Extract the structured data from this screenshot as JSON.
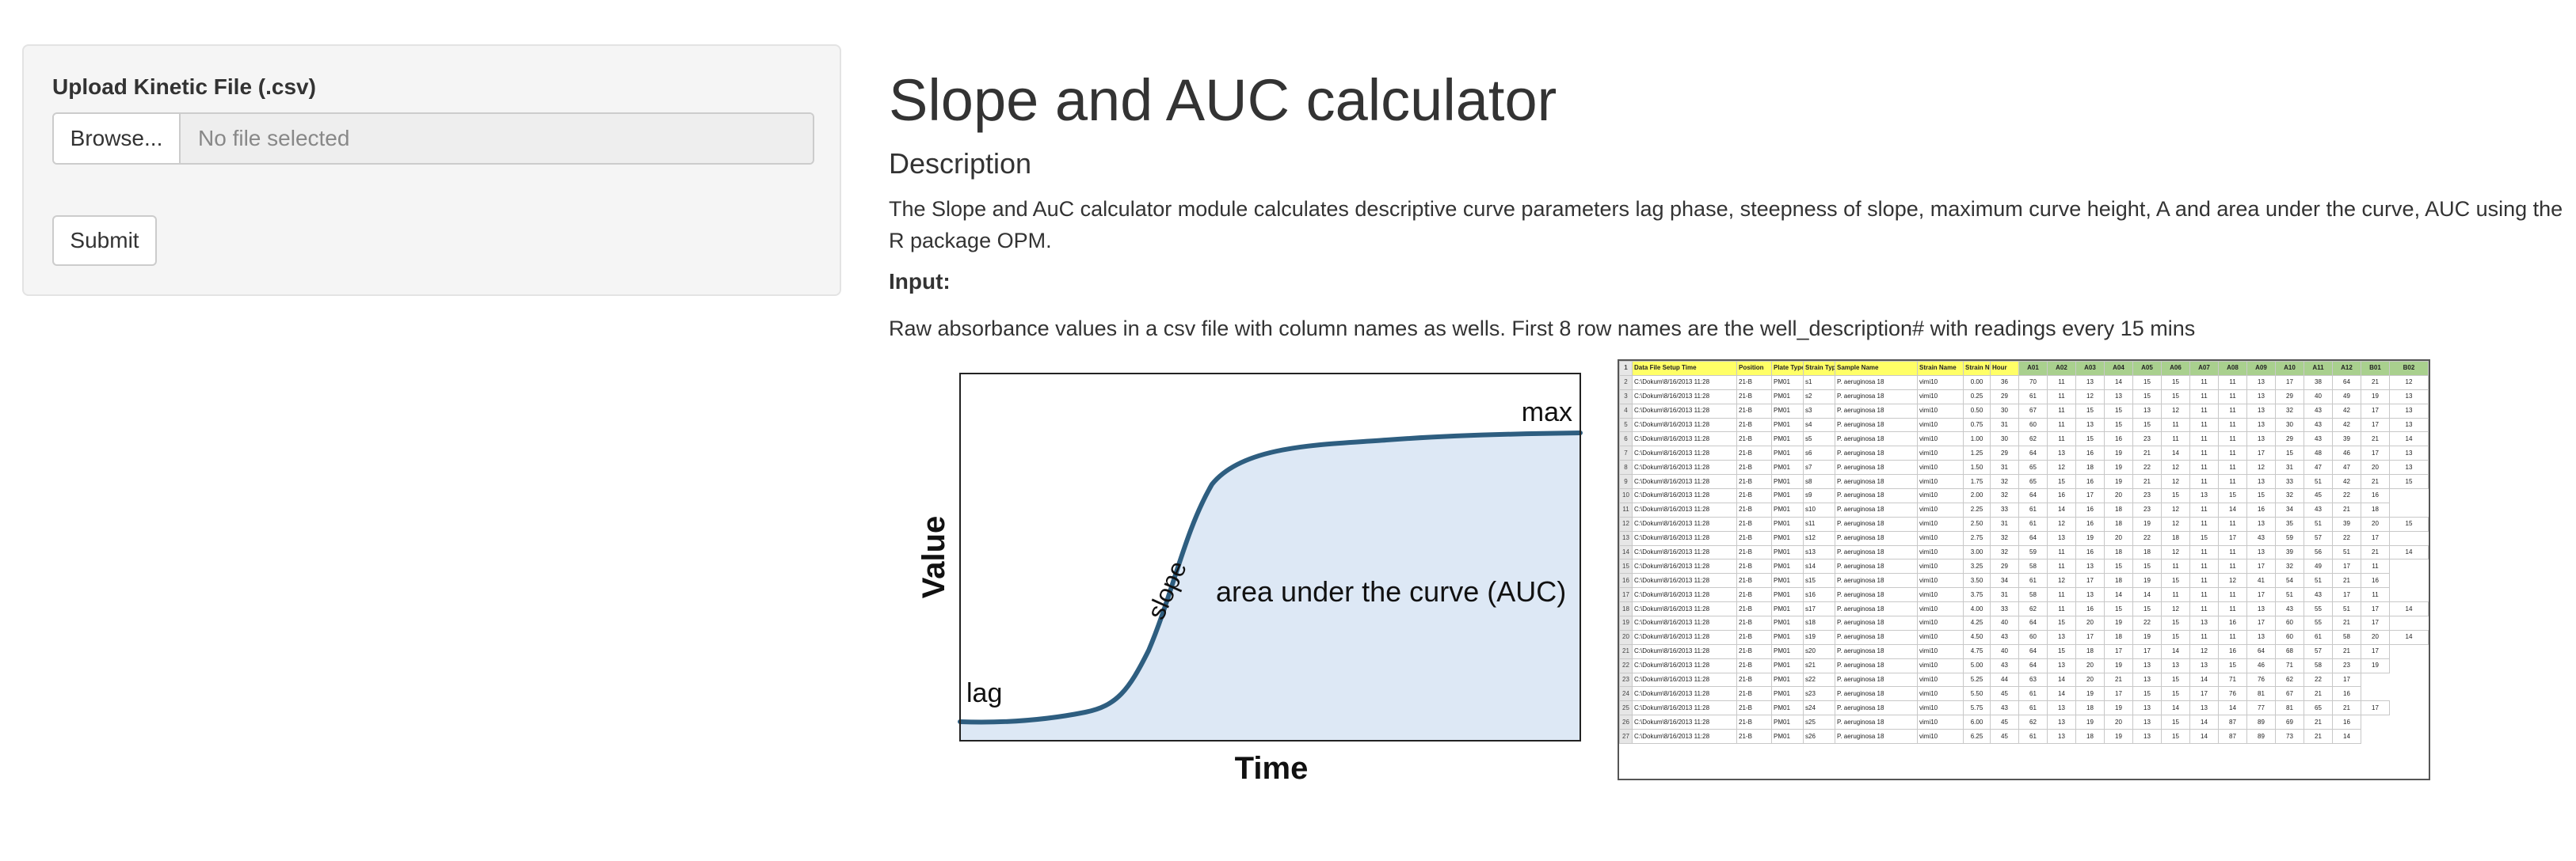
{
  "sidebar": {
    "upload_label": "Upload Kinetic File (.csv)",
    "browse_label": "Browse...",
    "file_placeholder": "No file selected",
    "submit_label": "Submit"
  },
  "main": {
    "title": "Slope and AUC calculator",
    "description_heading": "Description",
    "description_text": "The Slope and AuC calculator module calculates descriptive curve parameters lag phase, steepness of slope, maximum curve height, A and area under the curve, AUC using the R package OPM.",
    "input_heading": "Input:",
    "input_text": "Raw absorbance values in a csv file with column names as wells. First 8 row names are the well_description# with readings every 15 mins"
  },
  "curve_figure": {
    "xlabel": "Time",
    "ylabel": "Value",
    "lag_label": "lag",
    "slope_label": "slope",
    "max_label": "max",
    "auc_label": "area under the curve (AUC)",
    "curve_color": "#2e5e80",
    "fill_color": "#dde8f5"
  },
  "spreadsheet": {
    "header_colors": {
      "meta": "#ffff66",
      "wells": "#a9d08e"
    },
    "headers": [
      "Data File",
      "Setup Time",
      "Position",
      "Plate Type",
      "Strain Type",
      "Sample Name",
      "Strain Name",
      "Strain Number",
      "Hour",
      "A01",
      "A02",
      "A03",
      "A04",
      "A05",
      "A06",
      "A07",
      "A08",
      "A09",
      "A10",
      "A11",
      "A12",
      "B01",
      "B02"
    ],
    "rows": [
      [
        "C:\\Dokum\\8/16/2013 11:28",
        "21-B",
        "PM01",
        "s1",
        "P. aeruginosa 18",
        "vimi10",
        "0.00",
        "36",
        "70",
        "11",
        "13",
        "14",
        "15",
        "15",
        "11",
        "11",
        "13",
        "17",
        "38",
        "64",
        "21",
        "12"
      ],
      [
        "C:\\Dokum\\8/16/2013 11:28",
        "21-B",
        "PM01",
        "s2",
        "P. aeruginosa 18",
        "vimi10",
        "0.25",
        "29",
        "61",
        "11",
        "12",
        "13",
        "15",
        "15",
        "11",
        "11",
        "13",
        "29",
        "40",
        "49",
        "19",
        "13"
      ],
      [
        "C:\\Dokum\\8/16/2013 11:28",
        "21-B",
        "PM01",
        "s3",
        "P. aeruginosa 18",
        "vimi10",
        "0.50",
        "30",
        "67",
        "11",
        "15",
        "15",
        "13",
        "12",
        "11",
        "11",
        "13",
        "32",
        "43",
        "42",
        "17",
        "13"
      ],
      [
        "C:\\Dokum\\8/16/2013 11:28",
        "21-B",
        "PM01",
        "s4",
        "P. aeruginosa 18",
        "vimi10",
        "0.75",
        "31",
        "60",
        "11",
        "13",
        "15",
        "15",
        "11",
        "11",
        "11",
        "13",
        "30",
        "43",
        "42",
        "17",
        "13"
      ],
      [
        "C:\\Dokum\\8/16/2013 11:28",
        "21-B",
        "PM01",
        "s5",
        "P. aeruginosa 18",
        "vimi10",
        "1.00",
        "30",
        "62",
        "11",
        "15",
        "16",
        "23",
        "11",
        "11",
        "11",
        "13",
        "29",
        "43",
        "39",
        "21",
        "14"
      ],
      [
        "C:\\Dokum\\8/16/2013 11:28",
        "21-B",
        "PM01",
        "s6",
        "P. aeruginosa 18",
        "vimi10",
        "1.25",
        "29",
        "64",
        "13",
        "16",
        "19",
        "21",
        "14",
        "11",
        "11",
        "17",
        "15",
        "48",
        "46",
        "17",
        "13"
      ],
      [
        "C:\\Dokum\\8/16/2013 11:28",
        "21-B",
        "PM01",
        "s7",
        "P. aeruginosa 18",
        "vimi10",
        "1.50",
        "31",
        "65",
        "12",
        "18",
        "19",
        "22",
        "12",
        "11",
        "11",
        "12",
        "31",
        "47",
        "47",
        "20",
        "13"
      ],
      [
        "C:\\Dokum\\8/16/2013 11:28",
        "21-B",
        "PM01",
        "s8",
        "P. aeruginosa 18",
        "vimi10",
        "1.75",
        "32",
        "65",
        "15",
        "16",
        "19",
        "21",
        "12",
        "11",
        "11",
        "13",
        "33",
        "51",
        "42",
        "21",
        "15"
      ],
      [
        "C:\\Dokum\\8/16/2013 11:28",
        "21-B",
        "PM01",
        "s9",
        "P. aeruginosa 18",
        "vimi10",
        "2.00",
        "32",
        "64",
        "16",
        "17",
        "20",
        "23",
        "15",
        "13",
        "15",
        "15",
        "32",
        "45",
        "22",
        "16"
      ],
      [
        "C:\\Dokum\\8/16/2013 11:28",
        "21-B",
        "PM01",
        "s10",
        "P. aeruginosa 18",
        "vimi10",
        "2.25",
        "33",
        "61",
        "14",
        "16",
        "18",
        "23",
        "12",
        "11",
        "14",
        "16",
        "34",
        "43",
        "21",
        "18"
      ],
      [
        "C:\\Dokum\\8/16/2013 11:28",
        "21-B",
        "PM01",
        "s11",
        "P. aeruginosa 18",
        "vimi10",
        "2.50",
        "31",
        "61",
        "12",
        "16",
        "18",
        "19",
        "12",
        "11",
        "11",
        "13",
        "35",
        "51",
        "39",
        "20",
        "15"
      ],
      [
        "C:\\Dokum\\8/16/2013 11:28",
        "21-B",
        "PM01",
        "s12",
        "P. aeruginosa 18",
        "vimi10",
        "2.75",
        "32",
        "64",
        "13",
        "19",
        "20",
        "22",
        "18",
        "15",
        "17",
        "43",
        "59",
        "57",
        "22",
        "17"
      ],
      [
        "C:\\Dokum\\8/16/2013 11:28",
        "21-B",
        "PM01",
        "s13",
        "P. aeruginosa 18",
        "vimi10",
        "3.00",
        "32",
        "59",
        "11",
        "16",
        "18",
        "18",
        "12",
        "11",
        "11",
        "13",
        "39",
        "56",
        "51",
        "21",
        "14"
      ],
      [
        "C:\\Dokum\\8/16/2013 11:28",
        "21-B",
        "PM01",
        "s14",
        "P. aeruginosa 18",
        "vimi10",
        "3.25",
        "29",
        "58",
        "11",
        "13",
        "15",
        "15",
        "11",
        "11",
        "11",
        "17",
        "32",
        "49",
        "17",
        "11"
      ],
      [
        "C:\\Dokum\\8/16/2013 11:28",
        "21-B",
        "PM01",
        "s15",
        "P. aeruginosa 18",
        "vimi10",
        "3.50",
        "34",
        "61",
        "12",
        "17",
        "18",
        "19",
        "15",
        "11",
        "12",
        "41",
        "54",
        "51",
        "21",
        "16"
      ],
      [
        "C:\\Dokum\\8/16/2013 11:28",
        "21-B",
        "PM01",
        "s16",
        "P. aeruginosa 18",
        "vimi10",
        "3.75",
        "31",
        "58",
        "11",
        "13",
        "14",
        "14",
        "11",
        "11",
        "11",
        "17",
        "51",
        "43",
        "17",
        "11"
      ],
      [
        "C:\\Dokum\\8/16/2013 11:28",
        "21-B",
        "PM01",
        "s17",
        "P. aeruginosa 18",
        "vimi10",
        "4.00",
        "33",
        "62",
        "11",
        "16",
        "15",
        "15",
        "12",
        "11",
        "11",
        "13",
        "43",
        "55",
        "51",
        "17",
        "14"
      ],
      [
        "C:\\Dokum\\8/16/2013 11:28",
        "21-B",
        "PM01",
        "s18",
        "P. aeruginosa 18",
        "vimi10",
        "4.25",
        "40",
        "64",
        "15",
        "20",
        "19",
        "22",
        "15",
        "13",
        "16",
        "17",
        "60",
        "55",
        "21",
        "17"
      ],
      [
        "C:\\Dokum\\8/16/2013 11:28",
        "21-B",
        "PM01",
        "s19",
        "P. aeruginosa 18",
        "vimi10",
        "4.50",
        "43",
        "60",
        "13",
        "17",
        "18",
        "19",
        "15",
        "11",
        "11",
        "13",
        "60",
        "61",
        "58",
        "20",
        "14"
      ],
      [
        "C:\\Dokum\\8/16/2013 11:28",
        "21-B",
        "PM01",
        "s20",
        "P. aeruginosa 18",
        "vimi10",
        "4.75",
        "40",
        "64",
        "15",
        "18",
        "17",
        "17",
        "14",
        "12",
        "16",
        "64",
        "68",
        "57",
        "21",
        "17"
      ],
      [
        "C:\\Dokum\\8/16/2013 11:28",
        "21-B",
        "PM01",
        "s21",
        "P. aeruginosa 18",
        "vimi10",
        "5.00",
        "43",
        "64",
        "13",
        "20",
        "19",
        "13",
        "13",
        "13",
        "15",
        "46",
        "71",
        "58",
        "23",
        "19"
      ],
      [
        "C:\\Dokum\\8/16/2013 11:28",
        "21-B",
        "PM01",
        "s22",
        "P. aeruginosa 18",
        "vimi10",
        "5.25",
        "44",
        "63",
        "14",
        "20",
        "21",
        "13",
        "15",
        "14",
        "71",
        "76",
        "62",
        "22",
        "17"
      ],
      [
        "C:\\Dokum\\8/16/2013 11:28",
        "21-B",
        "PM01",
        "s23",
        "P. aeruginosa 18",
        "vimi10",
        "5.50",
        "45",
        "61",
        "14",
        "19",
        "17",
        "15",
        "15",
        "17",
        "76",
        "81",
        "67",
        "21",
        "16"
      ],
      [
        "C:\\Dokum\\8/16/2013 11:28",
        "21-B",
        "PM01",
        "s24",
        "P. aeruginosa 18",
        "vimi10",
        "5.75",
        "43",
        "61",
        "13",
        "18",
        "19",
        "13",
        "14",
        "13",
        "14",
        "77",
        "81",
        "65",
        "21",
        "17"
      ],
      [
        "C:\\Dokum\\8/16/2013 11:28",
        "21-B",
        "PM01",
        "s25",
        "P. aeruginosa 18",
        "vimi10",
        "6.00",
        "45",
        "62",
        "13",
        "19",
        "20",
        "13",
        "15",
        "14",
        "87",
        "89",
        "69",
        "21",
        "16"
      ],
      [
        "C:\\Dokum\\8/16/2013 11:28",
        "21-B",
        "PM01",
        "s26",
        "P. aeruginosa 18",
        "vimi10",
        "6.25",
        "45",
        "61",
        "13",
        "18",
        "19",
        "13",
        "15",
        "14",
        "87",
        "89",
        "73",
        "21",
        "14"
      ]
    ]
  }
}
